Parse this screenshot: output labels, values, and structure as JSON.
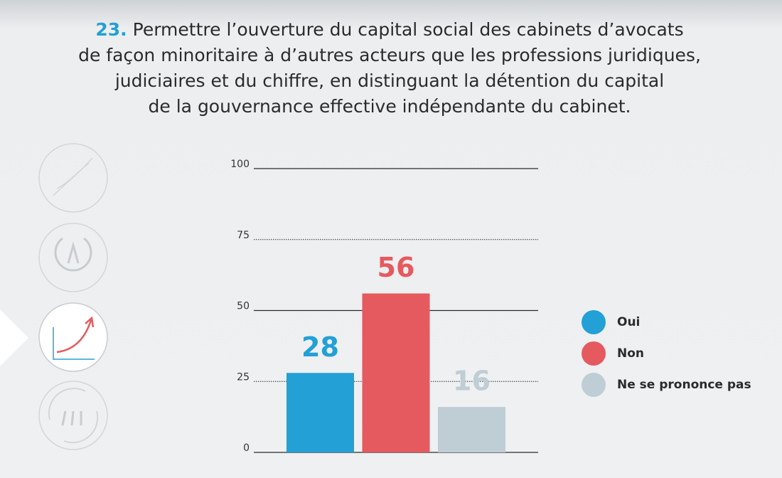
{
  "chart_data": {
    "type": "bar",
    "title_number": "23.",
    "title_lines": [
      "Permettre l’ouverture du capital social des cabinets d’avocats",
      "de façon minoritaire à d’autres acteurs que les professions juridiques,",
      "judiciaires et du chiffre, en distinguant la détention du capital",
      "de la gouvernance effective indépendante du cabinet."
    ],
    "categories": [
      "Oui",
      "Non",
      "Ne se prononce pas"
    ],
    "values": [
      28,
      56,
      16
    ],
    "colors": [
      "#23a0d5",
      "#e55a5e",
      "#bfcdd5"
    ],
    "ylim": [
      0,
      100
    ],
    "yticks": [
      0,
      25,
      50,
      75,
      100
    ],
    "grid": true,
    "legend": "right"
  }
}
